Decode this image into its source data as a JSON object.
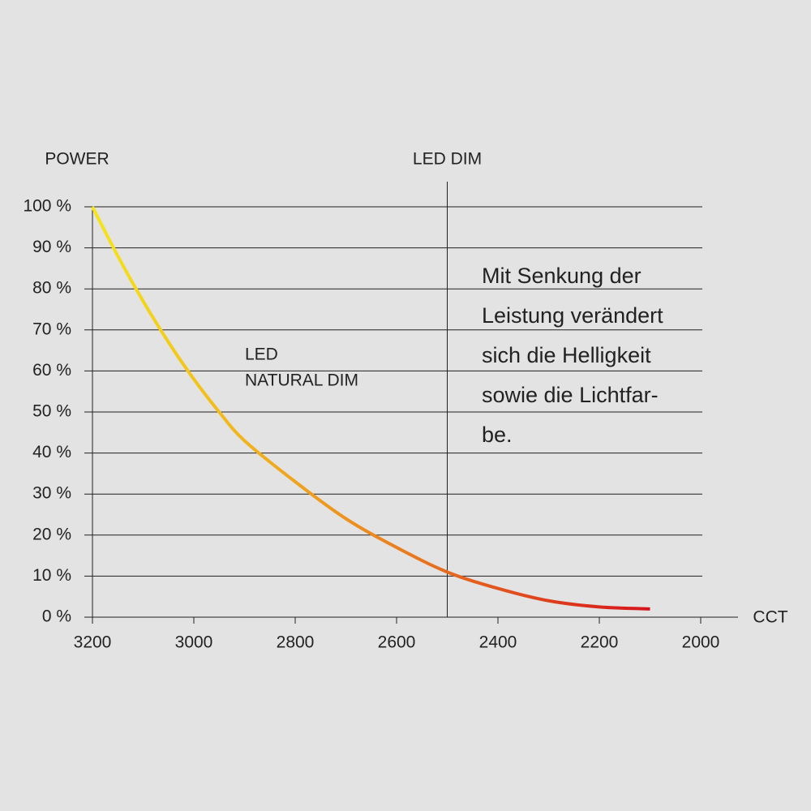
{
  "chart_data": {
    "type": "line",
    "y_label": "POWER",
    "x_label": "CCT",
    "x": [
      3200,
      3150,
      3100,
      3050,
      3000,
      2950,
      2900,
      2800,
      2700,
      2600,
      2500,
      2400,
      2300,
      2200,
      2100
    ],
    "values": [
      100,
      88,
      77,
      67,
      58,
      50,
      43,
      33,
      24,
      17,
      11,
      7,
      4,
      2.5,
      2
    ],
    "colors": [
      "#f6e51a",
      "#ec8a1f",
      "#d6141c"
    ],
    "line_label": [
      "LED",
      "NATURAL DIM"
    ],
    "vline": {
      "x": 2500,
      "label": "LED DIM"
    },
    "text_block": [
      "Mit Senkung der",
      "Leistung verändert",
      "sich die Helligkeit",
      "sowie die Lichtfar-",
      "be."
    ],
    "xlim": [
      3200,
      2000
    ],
    "xticks": [
      3200,
      3000,
      2800,
      2600,
      2400,
      2200,
      2000
    ],
    "ylim": [
      0,
      100
    ],
    "yticks": [
      {
        "value": 0,
        "label": "0 %"
      },
      {
        "value": 10,
        "label": "10 %"
      },
      {
        "value": 20,
        "label": "20 %"
      },
      {
        "value": 30,
        "label": "30 %"
      },
      {
        "value": 40,
        "label": "40 %"
      },
      {
        "value": 50,
        "label": "50 %"
      },
      {
        "value": 60,
        "label": "60 %"
      },
      {
        "value": 70,
        "label": "70 %"
      },
      {
        "value": 80,
        "label": "80 %"
      },
      {
        "value": 90,
        "label": "90 %"
      },
      {
        "value": 100,
        "label": "100 %"
      }
    ],
    "grid": true
  }
}
